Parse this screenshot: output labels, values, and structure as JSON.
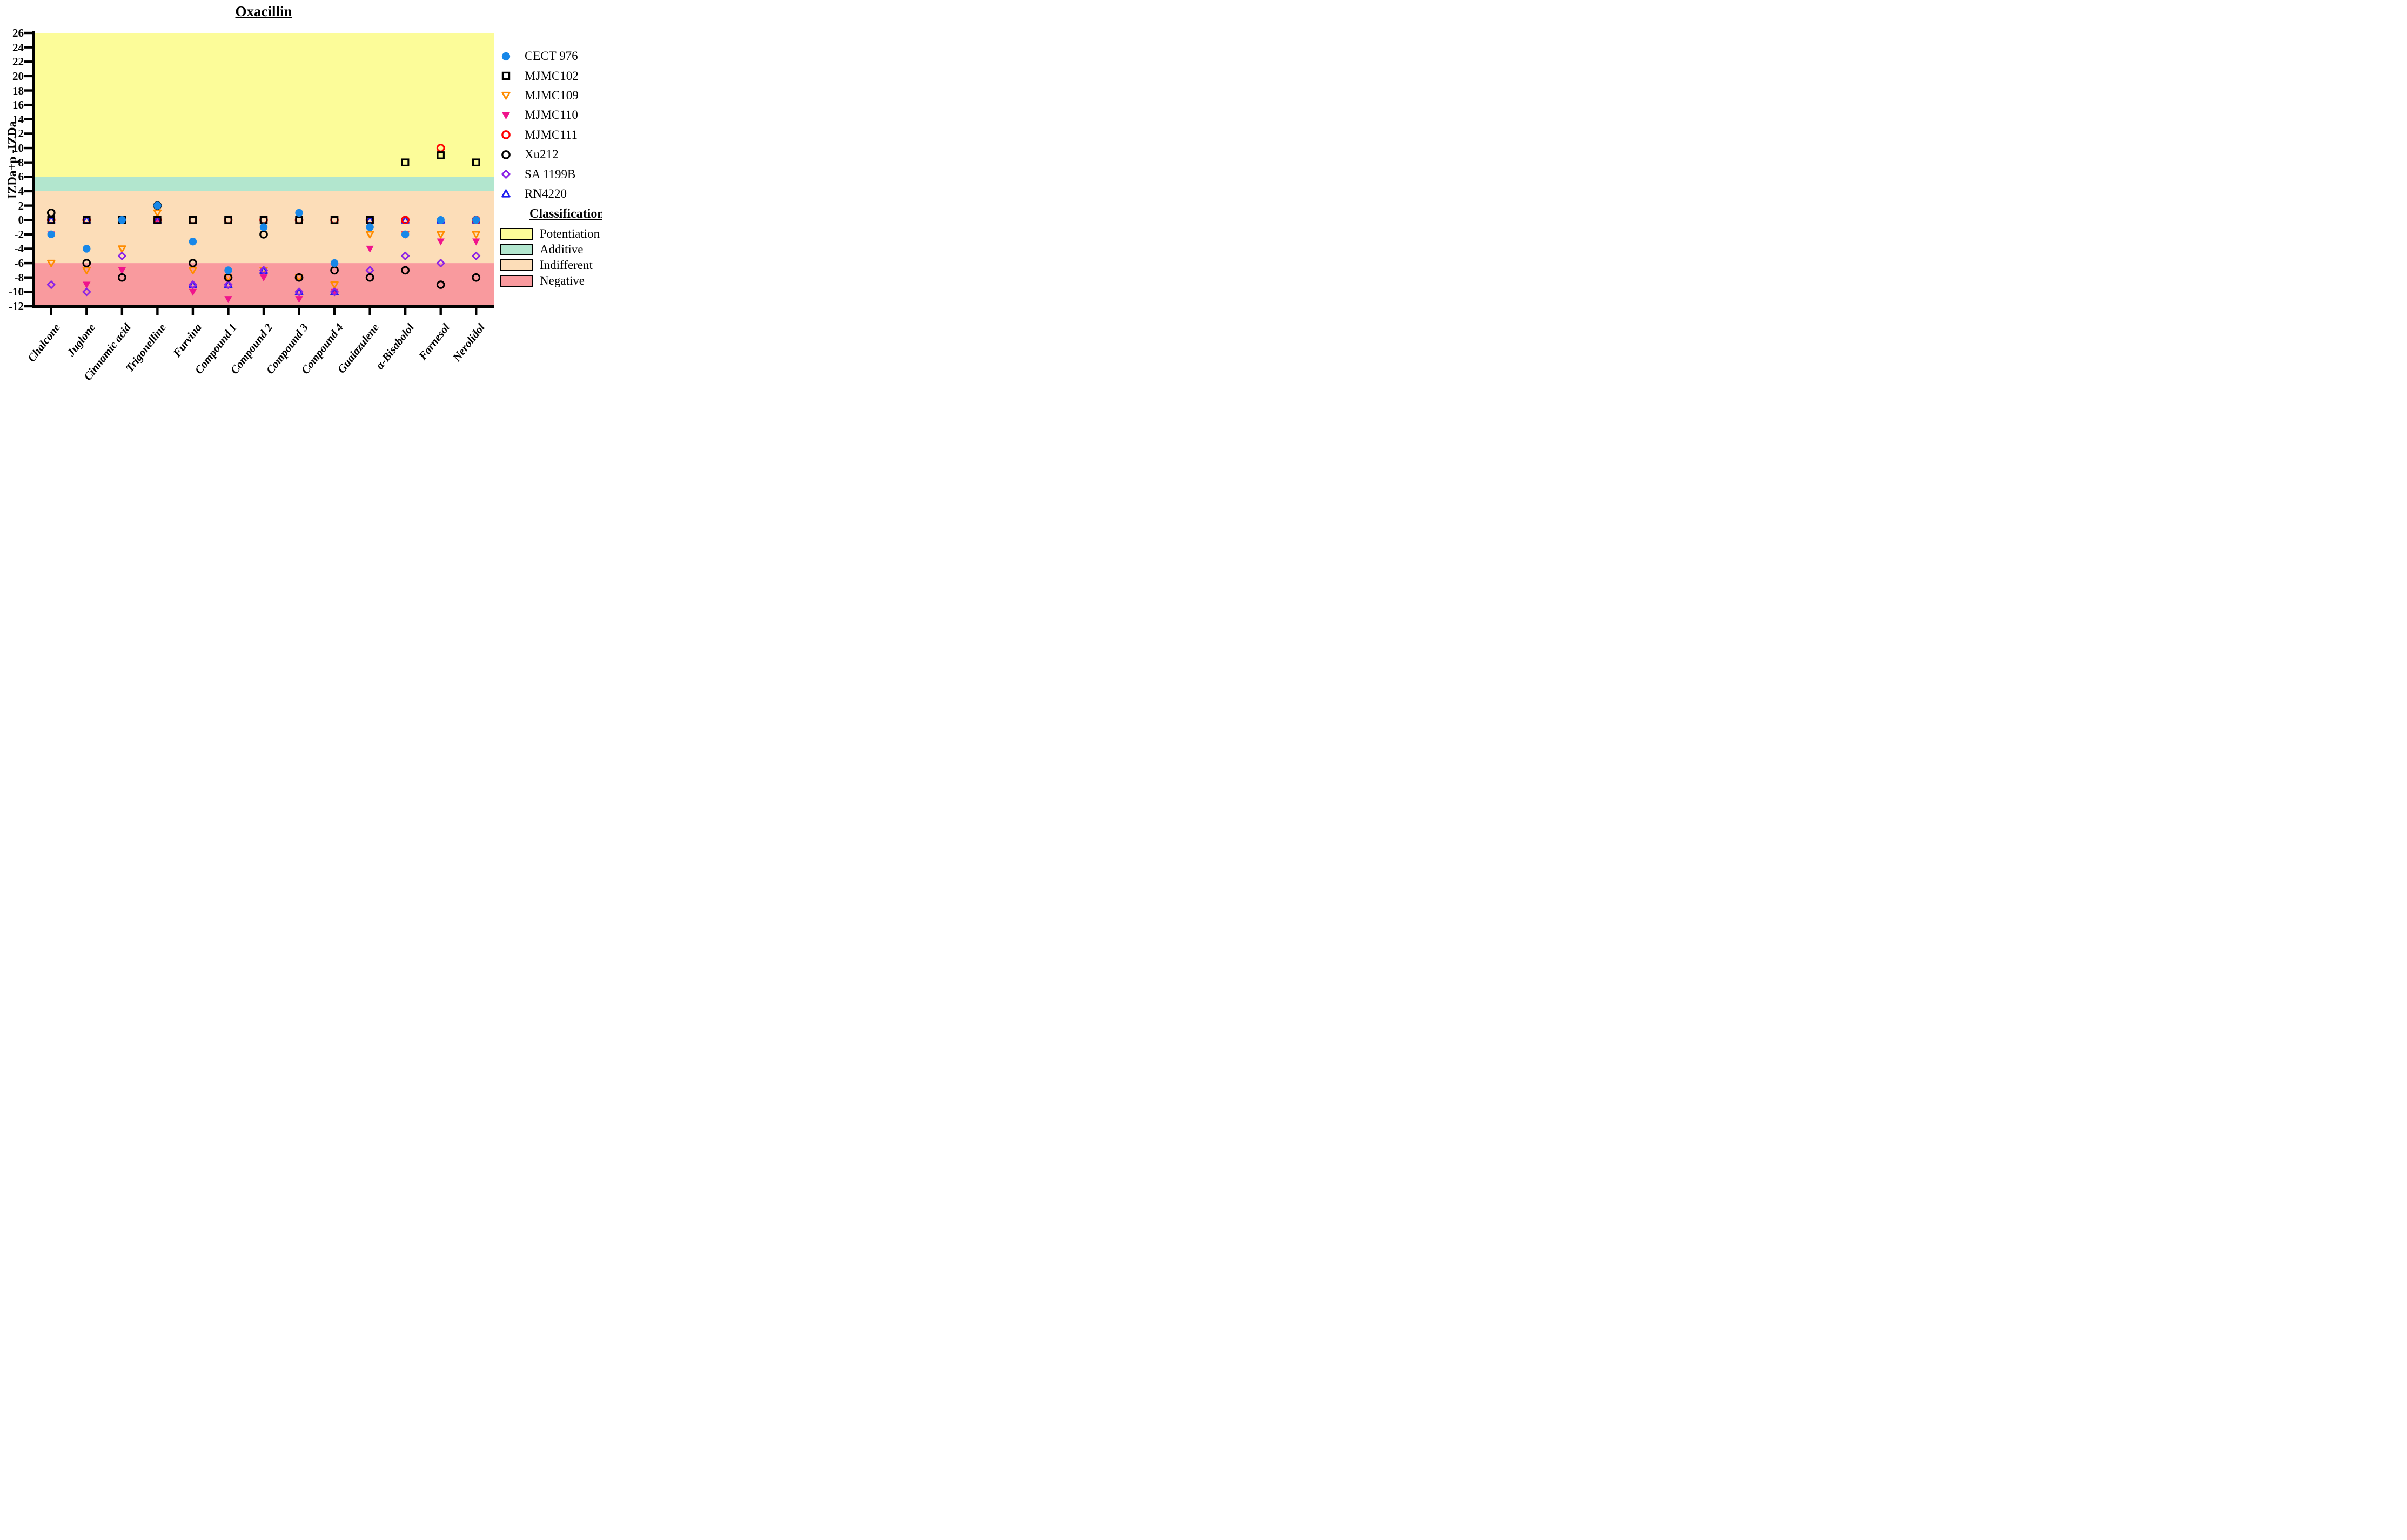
{
  "title": "Oxacillin",
  "chart_data": {
    "type": "scatter",
    "title": "Oxacillin",
    "ylabel": "IZDa+p -IZDa",
    "ylim": [
      -12,
      26
    ],
    "ytick_step": 2,
    "grid": false,
    "legend_position": "right",
    "categories": [
      "Chalcone",
      "Juglone",
      "Cinnamic acid",
      "Trigonelline",
      "Furvina",
      "Compound 1",
      "Compound 2",
      "Compound 3",
      "Compound 4",
      "Guaiazulene",
      "α-Bisabolol",
      "Farnesol",
      "Nerolidol"
    ],
    "series": [
      {
        "name": "CECT 976",
        "marker": "circle-filled",
        "color": "#1787E8",
        "values": [
          -2,
          -4,
          0,
          2,
          -3,
          -7,
          -1,
          1,
          -6,
          -1,
          -2,
          0,
          0
        ]
      },
      {
        "name": "MJMC102",
        "marker": "square-open",
        "color": "#000000",
        "values": [
          0,
          0,
          0,
          0,
          0,
          0,
          0,
          0,
          0,
          0,
          8,
          9,
          8
        ]
      },
      {
        "name": "MJMC109",
        "marker": "triangle-down-open",
        "color": "#FF8C00",
        "values": [
          -6,
          -7,
          -4,
          1,
          -7,
          -8,
          -7,
          -8,
          -9,
          -2,
          -2,
          -2,
          -2
        ]
      },
      {
        "name": "MJMC110",
        "marker": "triangle-down-filled",
        "color": "#F0148C",
        "values": [
          -2,
          -9,
          -7,
          0,
          -10,
          -11,
          -8,
          -11,
          -10,
          -4,
          -2,
          -3,
          -3
        ]
      },
      {
        "name": "MJMC111",
        "marker": "circle-open",
        "color": "#FF0000",
        "values": [
          0,
          0,
          0,
          0,
          0,
          0,
          0,
          0,
          0,
          0,
          0,
          10,
          0
        ]
      },
      {
        "name": "Xu212",
        "marker": "circle-open",
        "color": "#000000",
        "values": [
          1,
          -6,
          -8,
          2,
          -6,
          -8,
          -2,
          -8,
          -7,
          -8,
          -7,
          -9,
          -8
        ]
      },
      {
        "name": "SA 1199B",
        "marker": "diamond-open",
        "color": "#8B22E6",
        "values": [
          -9,
          -10,
          -5,
          2,
          -9,
          -9,
          -7,
          -10,
          -10,
          -7,
          -5,
          -6,
          -5
        ]
      },
      {
        "name": "RN4220",
        "marker": "triangle-up-open",
        "color": "#1C1CF0",
        "values": [
          0,
          0,
          0,
          0,
          -9,
          -9,
          -7,
          -10,
          -10,
          0,
          0,
          0,
          0
        ]
      }
    ],
    "draw_order": [
      "MJMC109",
      "MJMC110",
      "RN4220",
      "SA 1199B",
      "MJMC111",
      "Xu212",
      "MJMC102",
      "CECT 976"
    ],
    "classification_title": "Classification:",
    "bands": [
      {
        "label": "Potentiation",
        "color": "#FCFC99",
        "from": 6,
        "to": 26
      },
      {
        "label": "Additive",
        "color": "#B2E6CE",
        "from": 4,
        "to": 6
      },
      {
        "label": "Indifferent",
        "color": "#FCDDB8",
        "from": -6,
        "to": 4
      },
      {
        "label": "Negative",
        "color": "#F99A9E",
        "from": -12,
        "to": -6
      }
    ]
  }
}
